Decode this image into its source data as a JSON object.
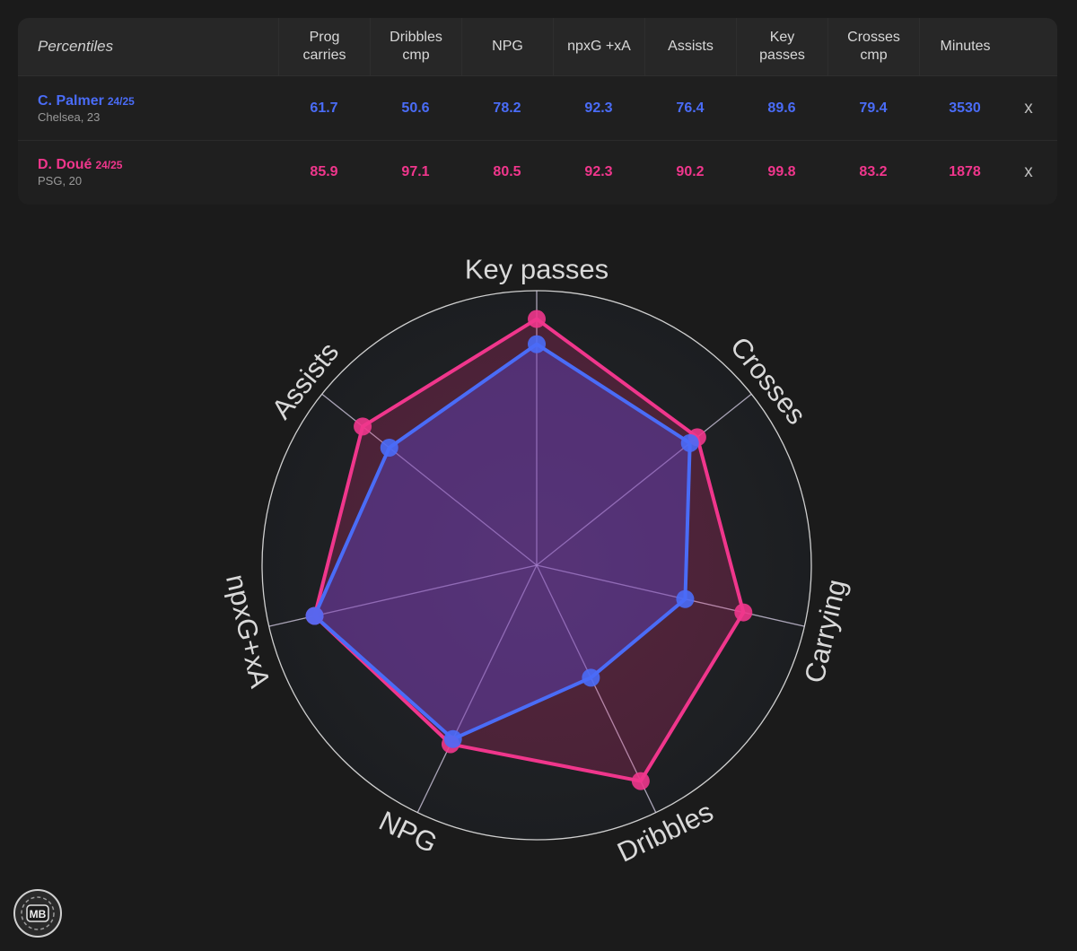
{
  "table": {
    "header_label": "Percentiles",
    "columns": [
      {
        "line1": "Prog",
        "line2": "carries"
      },
      {
        "line1": "Dribbles",
        "line2": "cmp"
      },
      {
        "line1": "NPG",
        "line2": ""
      },
      {
        "line1": "npxG +xA",
        "line2": ""
      },
      {
        "line1": "Assists",
        "line2": ""
      },
      {
        "line1": "Key",
        "line2": "passes"
      },
      {
        "line1": "Crosses",
        "line2": "cmp"
      },
      {
        "line1": "Minutes",
        "line2": ""
      }
    ],
    "players": [
      {
        "name": "C. Palmer",
        "season": "24/25",
        "meta": "Chelsea, 23",
        "values": [
          "61.7",
          "50.6",
          "78.2",
          "92.3",
          "76.4",
          "89.6",
          "79.4",
          "3530"
        ],
        "remove_label": "x"
      },
      {
        "name": "D. Doué",
        "season": "24/25",
        "meta": "PSG, 20",
        "values": [
          "85.9",
          "97.1",
          "80.5",
          "92.3",
          "90.2",
          "99.8",
          "83.2",
          "1878"
        ],
        "remove_label": "x"
      }
    ]
  },
  "colors": {
    "palmer": "#4a6cf7",
    "doue": "#f0368c",
    "background": "#1b1b1b"
  },
  "chart_data": {
    "type": "radar",
    "axes": [
      "Key passes",
      "Crosses",
      "Carrying",
      "Dribbles",
      "NPG",
      "npxG+xA",
      "Assists"
    ],
    "range": [
      0,
      100
    ],
    "series": [
      {
        "name": "C. Palmer",
        "values": [
          89.6,
          79.4,
          61.7,
          50.6,
          78.2,
          92.3,
          76.4
        ]
      },
      {
        "name": "D. Doué",
        "values": [
          99.8,
          83.2,
          85.9,
          97.1,
          80.5,
          92.3,
          90.2
        ]
      }
    ]
  },
  "logo": {
    "text": "MB"
  }
}
